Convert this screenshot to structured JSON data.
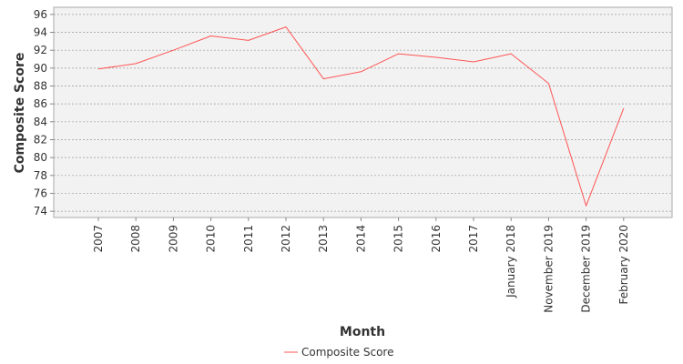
{
  "chart_data": {
    "type": "line",
    "xlabel": "Month",
    "ylabel": "Composite Score",
    "categories": [
      "2007",
      "2008",
      "2009",
      "2010",
      "2011",
      "2012",
      "2013",
      "2014",
      "2015",
      "2016",
      "2017",
      "January 2018",
      "November 2019",
      "December 2019",
      "February 2020"
    ],
    "series": [
      {
        "name": "Composite Score",
        "values": [
          89.9,
          90.5,
          92.0,
          93.6,
          93.1,
          94.6,
          88.8,
          89.6,
          91.6,
          91.2,
          90.7,
          91.6,
          88.3,
          74.6,
          85.5
        ]
      }
    ],
    "yticks": [
      74,
      76,
      78,
      80,
      82,
      84,
      86,
      88,
      90,
      92,
      94,
      96
    ],
    "ylim": [
      73.3,
      96.8
    ],
    "grid": true,
    "legend": "bottom-center",
    "colors": {
      "series": "#ff5555",
      "plot_background": "#f2f2f2",
      "grid": "#999999",
      "frame": "#aaaaaa"
    }
  }
}
